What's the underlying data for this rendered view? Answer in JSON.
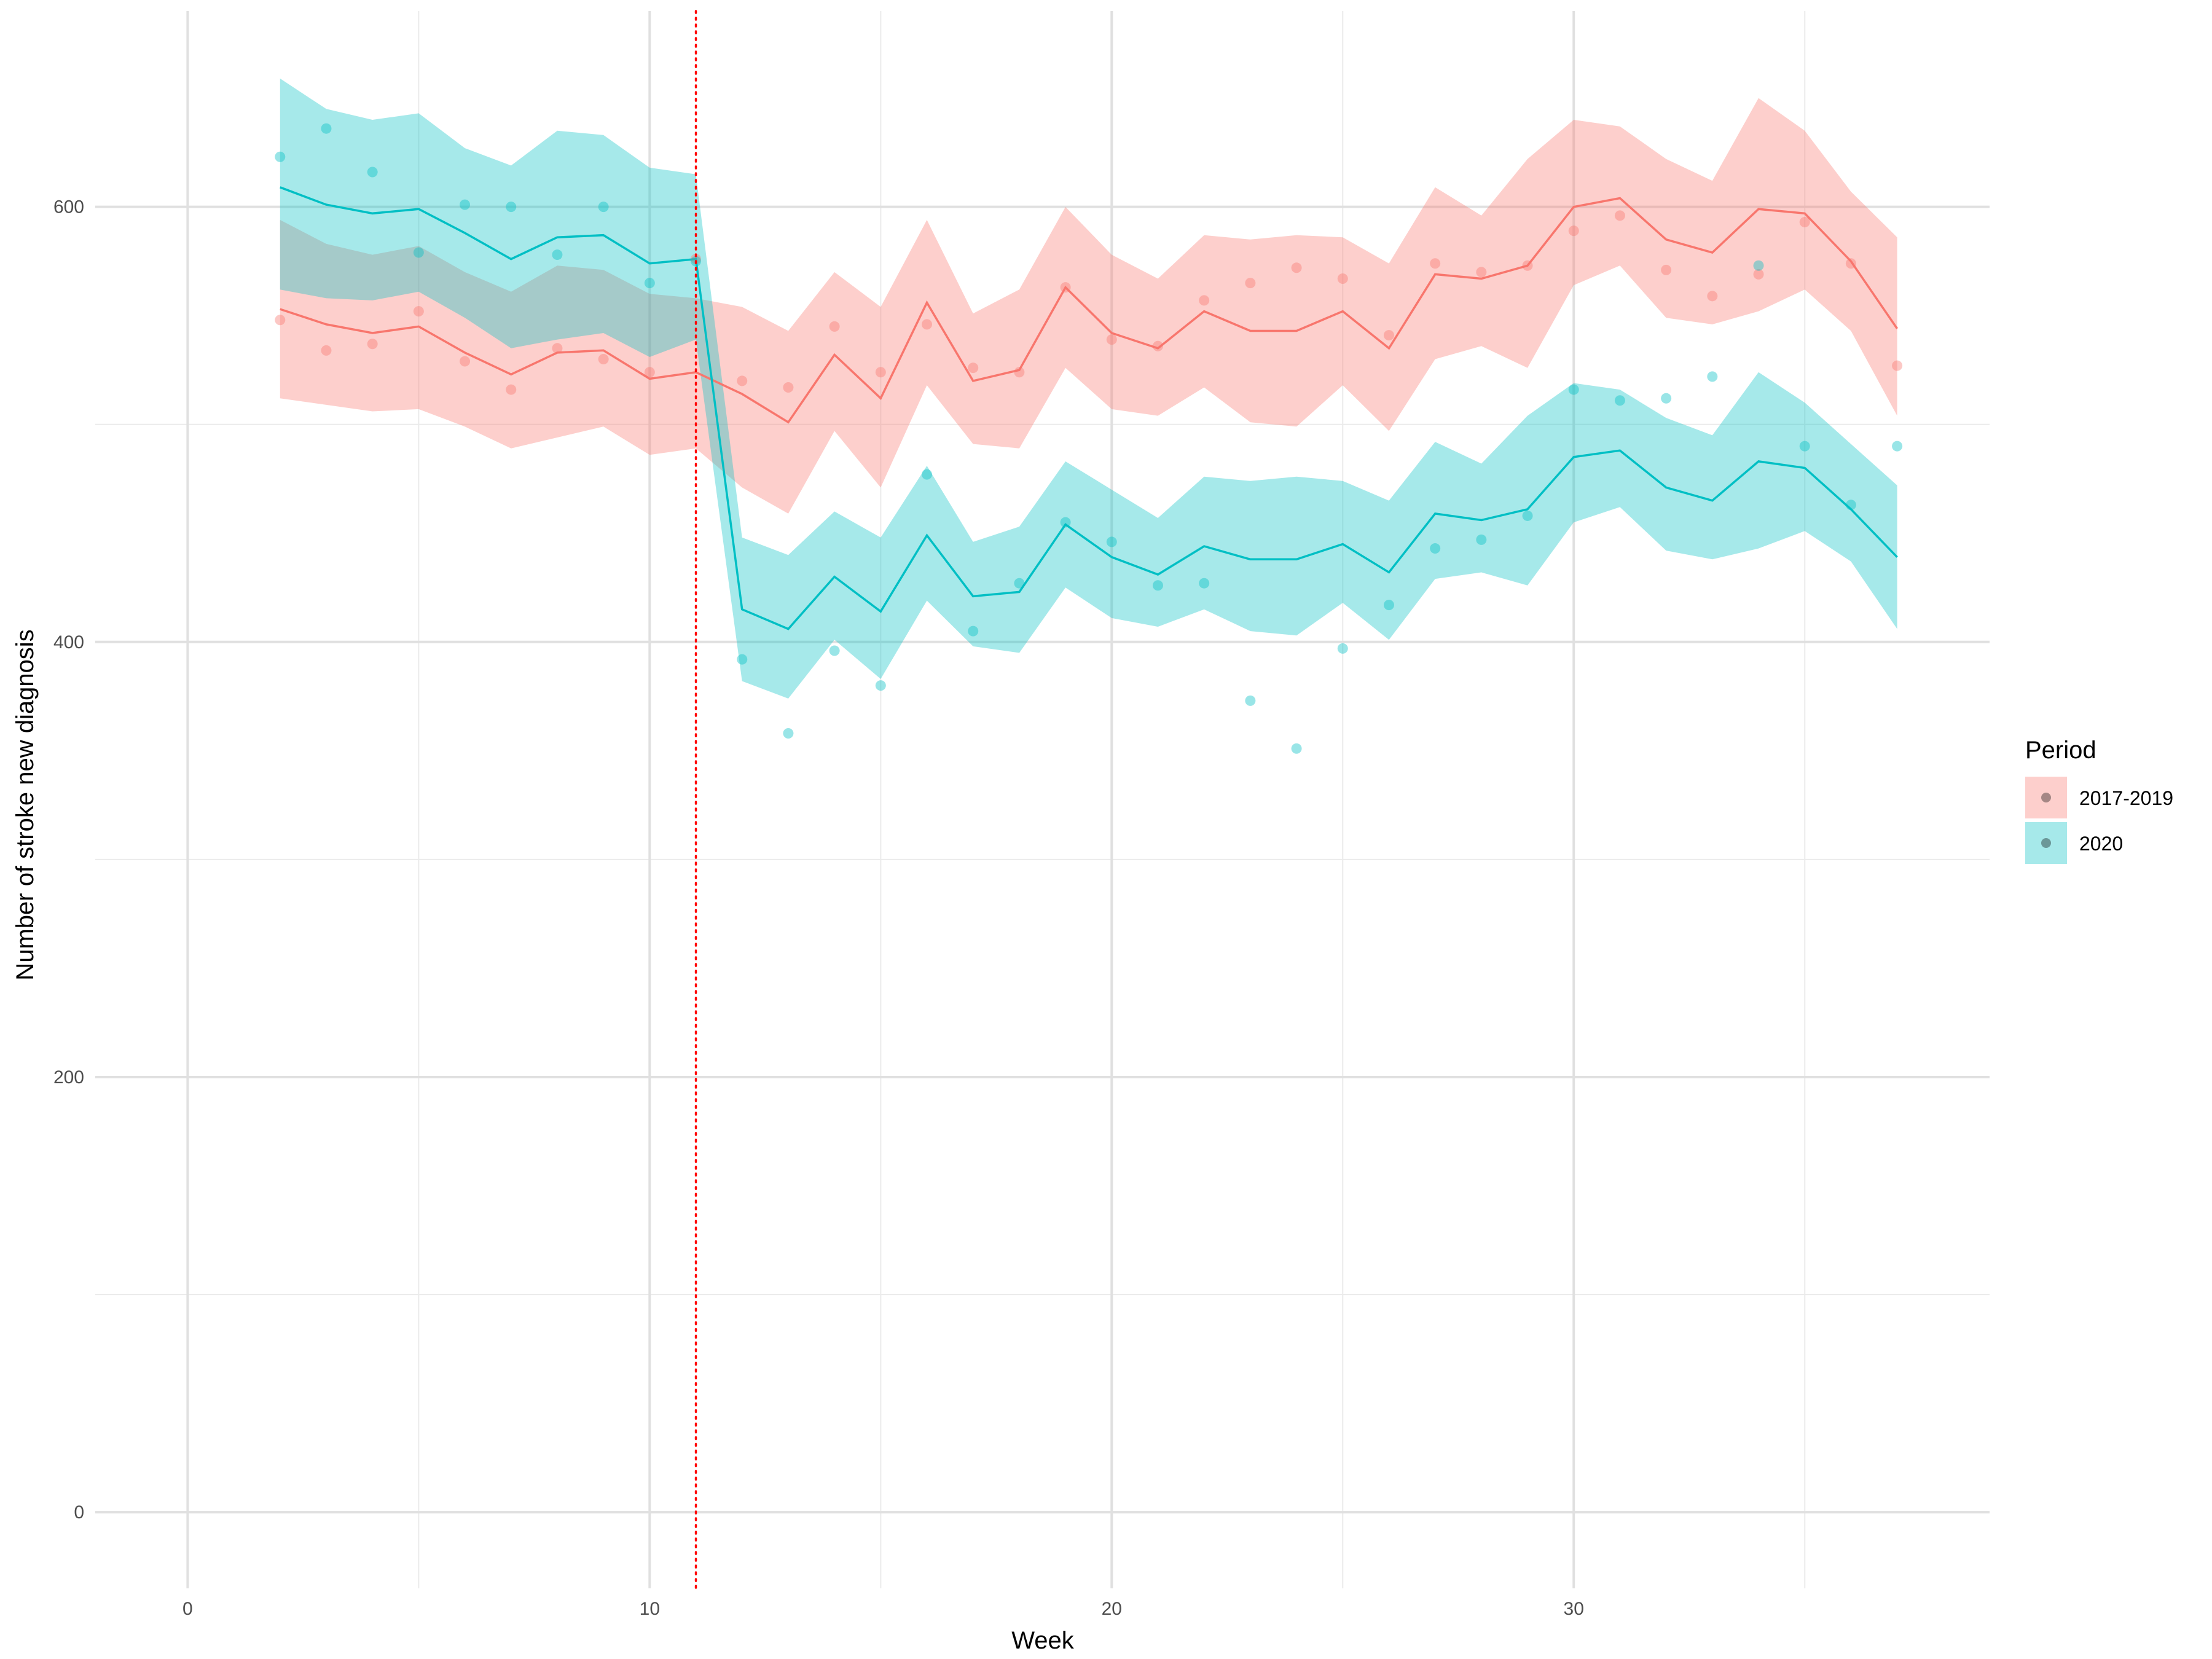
{
  "chart_data": {
    "type": "line",
    "xlabel": "Week",
    "ylabel": "Number of stroke new diagnosis",
    "xlim": [
      -2,
      39
    ],
    "ylim": [
      -35,
      690
    ],
    "x_major_ticks": [
      0,
      10,
      20,
      30
    ],
    "x_tick_labels": [
      "0",
      "10",
      "20",
      "30"
    ],
    "x_minor_ticks": [
      5,
      15,
      25,
      35
    ],
    "y_major_ticks": [
      0,
      200,
      400,
      600
    ],
    "y_tick_labels": [
      "0",
      "200",
      "400",
      "600"
    ],
    "y_minor_ticks": [
      100,
      300,
      500
    ],
    "grid": true,
    "vline": {
      "x": 11,
      "color": "#ff0000",
      "style": "dotted"
    },
    "legend": {
      "title": "Period",
      "position": "right"
    },
    "x": [
      2,
      3,
      4,
      5,
      6,
      7,
      8,
      9,
      10,
      11,
      12,
      13,
      14,
      15,
      16,
      17,
      18,
      19,
      20,
      21,
      22,
      23,
      24,
      25,
      26,
      27,
      28,
      29,
      30,
      31,
      32,
      33,
      34,
      35,
      36,
      37
    ],
    "series": [
      {
        "name": "2017-2019",
        "color": "#F8766D",
        "fill": "#F8766D",
        "points": [
          548,
          534,
          537,
          552,
          529,
          516,
          535,
          530,
          524,
          576,
          520,
          517,
          545,
          524,
          546,
          526,
          524,
          563,
          539,
          536,
          557,
          565,
          572,
          567,
          541,
          574,
          570,
          573,
          589,
          596,
          571,
          559,
          569,
          593,
          574,
          527
        ],
        "fit": [
          553,
          546,
          542,
          545,
          533,
          523,
          533,
          534,
          521,
          524,
          514,
          501,
          532,
          512,
          556,
          520,
          525,
          563,
          542,
          535,
          552,
          543,
          543,
          552,
          535,
          569,
          567,
          573,
          600,
          604,
          585,
          579,
          599,
          597,
          575,
          544
        ],
        "lower": [
          512,
          509,
          506,
          507,
          499,
          489,
          494,
          499,
          486,
          489,
          471,
          459,
          497,
          471,
          518,
          491,
          489,
          526,
          507,
          504,
          517,
          501,
          499,
          518,
          497,
          530,
          536,
          526,
          564,
          573,
          549,
          546,
          552,
          562,
          543,
          504
        ],
        "upper": [
          594,
          583,
          578,
          582,
          570,
          561,
          573,
          571,
          560,
          558,
          554,
          543,
          570,
          554,
          594,
          551,
          562,
          600,
          578,
          567,
          587,
          585,
          587,
          586,
          574,
          609,
          596,
          622,
          640,
          637,
          622,
          612,
          650,
          635,
          607,
          586
        ]
      },
      {
        "name": "2020",
        "color": "#00BFC4",
        "fill": "#00BFC4",
        "points": [
          623,
          636,
          616,
          579,
          601,
          600,
          578,
          600,
          565,
          575,
          392,
          358,
          396,
          380,
          477,
          405,
          427,
          455,
          446,
          426,
          427,
          373,
          351,
          397,
          417,
          443,
          447,
          458,
          516,
          511,
          512,
          522,
          573,
          490,
          463,
          490
        ],
        "fit": [
          609,
          601,
          597,
          599,
          588,
          576,
          586,
          587,
          574,
          576,
          415,
          406,
          430,
          414,
          449,
          421,
          423,
          454,
          439,
          431,
          444,
          438,
          438,
          445,
          432,
          459,
          456,
          461,
          485,
          488,
          471,
          465,
          483,
          480,
          461,
          439
        ],
        "lower": [
          562,
          558,
          557,
          561,
          549,
          535,
          539,
          542,
          531,
          539,
          382,
          374,
          401,
          383,
          419,
          398,
          395,
          425,
          411,
          407,
          415,
          405,
          403,
          418,
          401,
          429,
          432,
          426,
          455,
          462,
          442,
          438,
          443,
          451,
          437,
          406
        ],
        "upper": [
          659,
          645,
          640,
          643,
          627,
          619,
          635,
          633,
          618,
          615,
          448,
          440,
          460,
          448,
          481,
          446,
          453,
          483,
          470,
          457,
          476,
          474,
          476,
          474,
          465,
          492,
          482,
          504,
          519,
          516,
          503,
          495,
          524,
          510,
          491,
          472
        ]
      }
    ]
  }
}
